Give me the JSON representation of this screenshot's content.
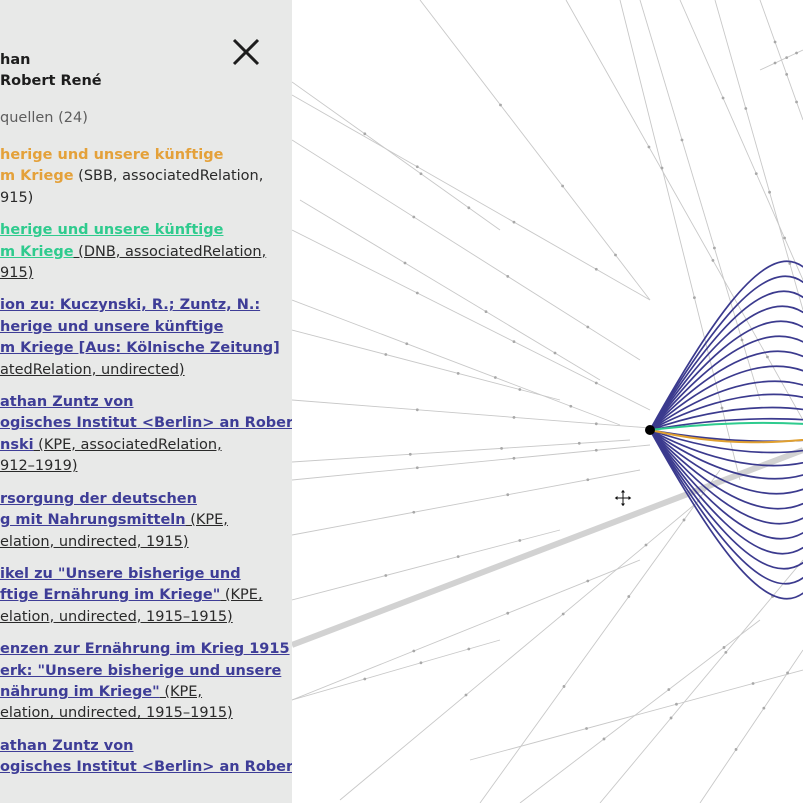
{
  "panel": {
    "name_line1": "han",
    "name_line2": "Robert René",
    "sources_label": "quellen (24)",
    "close_icon": "close-icon",
    "entries": [
      {
        "color": "orange",
        "lines": [
          {
            "t": "herige und unsere künftige"
          },
          {
            "t": "m Kriege",
            "m": " (SBB, associatedRelation,"
          },
          {
            "m": "915)"
          }
        ]
      },
      {
        "color": "green",
        "lines": [
          {
            "t": "herige und unsere künftige"
          },
          {
            "t": "m Kriege",
            "m": " (DNB, associatedRelation,"
          },
          {
            "m": "915)"
          }
        ]
      },
      {
        "color": "blue",
        "lines": [
          {
            "t": "ion zu: Kuczynski, R.; Zuntz, N.:"
          },
          {
            "t": "herige und unsere künftige"
          },
          {
            "t": "m Kriege [Aus: Kölnische Zeitung]"
          },
          {
            "m": "atedRelation, undirected)"
          }
        ]
      },
      {
        "color": "blue",
        "lines": [
          {
            "t": "athan Zuntz von"
          },
          {
            "t": "ogisches Institut <Berlin> an Robert"
          },
          {
            "t": "nski",
            "m": " (KPE, associatedRelation,"
          },
          {
            "m": "912–1919)"
          }
        ]
      },
      {
        "color": "blue",
        "lines": [
          {
            "t": "rsorgung der deutschen"
          },
          {
            "t": "g mit Nahrungsmitteln",
            "m": " (KPE,"
          },
          {
            "m": "elation, undirected, 1915)"
          }
        ]
      },
      {
        "color": "blue",
        "lines": [
          {
            "t": "ikel zu \"Unsere bisherige und"
          },
          {
            "t": "ftige Ernährung im Kriege\"",
            "m": " (KPE,"
          },
          {
            "m": "elation, undirected, 1915–1915)"
          }
        ]
      },
      {
        "color": "blue",
        "lines": [
          {
            "t": "enzen zur Ernährung im Krieg 1915"
          },
          {
            "t": "erk: \"Unsere bisherige und unsere"
          },
          {
            "t": "nährung im Kriege\"",
            "m": " (KPE,"
          },
          {
            "m": "elation, undirected, 1915–1915)"
          }
        ]
      },
      {
        "color": "blue",
        "lines": [
          {
            "t": "athan Zuntz von"
          },
          {
            "t": "ogisches Institut <Berlin> an Robert"
          }
        ]
      }
    ]
  },
  "graph": {
    "colors": {
      "blue": "#3b3a8e",
      "orange": "#e0a030",
      "green": "#2fcb8e",
      "thin": "#c8c8c8",
      "dot": "#a8a8a8",
      "node": "#000000",
      "panel_bg": "#e8e9e8"
    },
    "move_icon": "move-cursor-icon",
    "edge_count": 24
  }
}
